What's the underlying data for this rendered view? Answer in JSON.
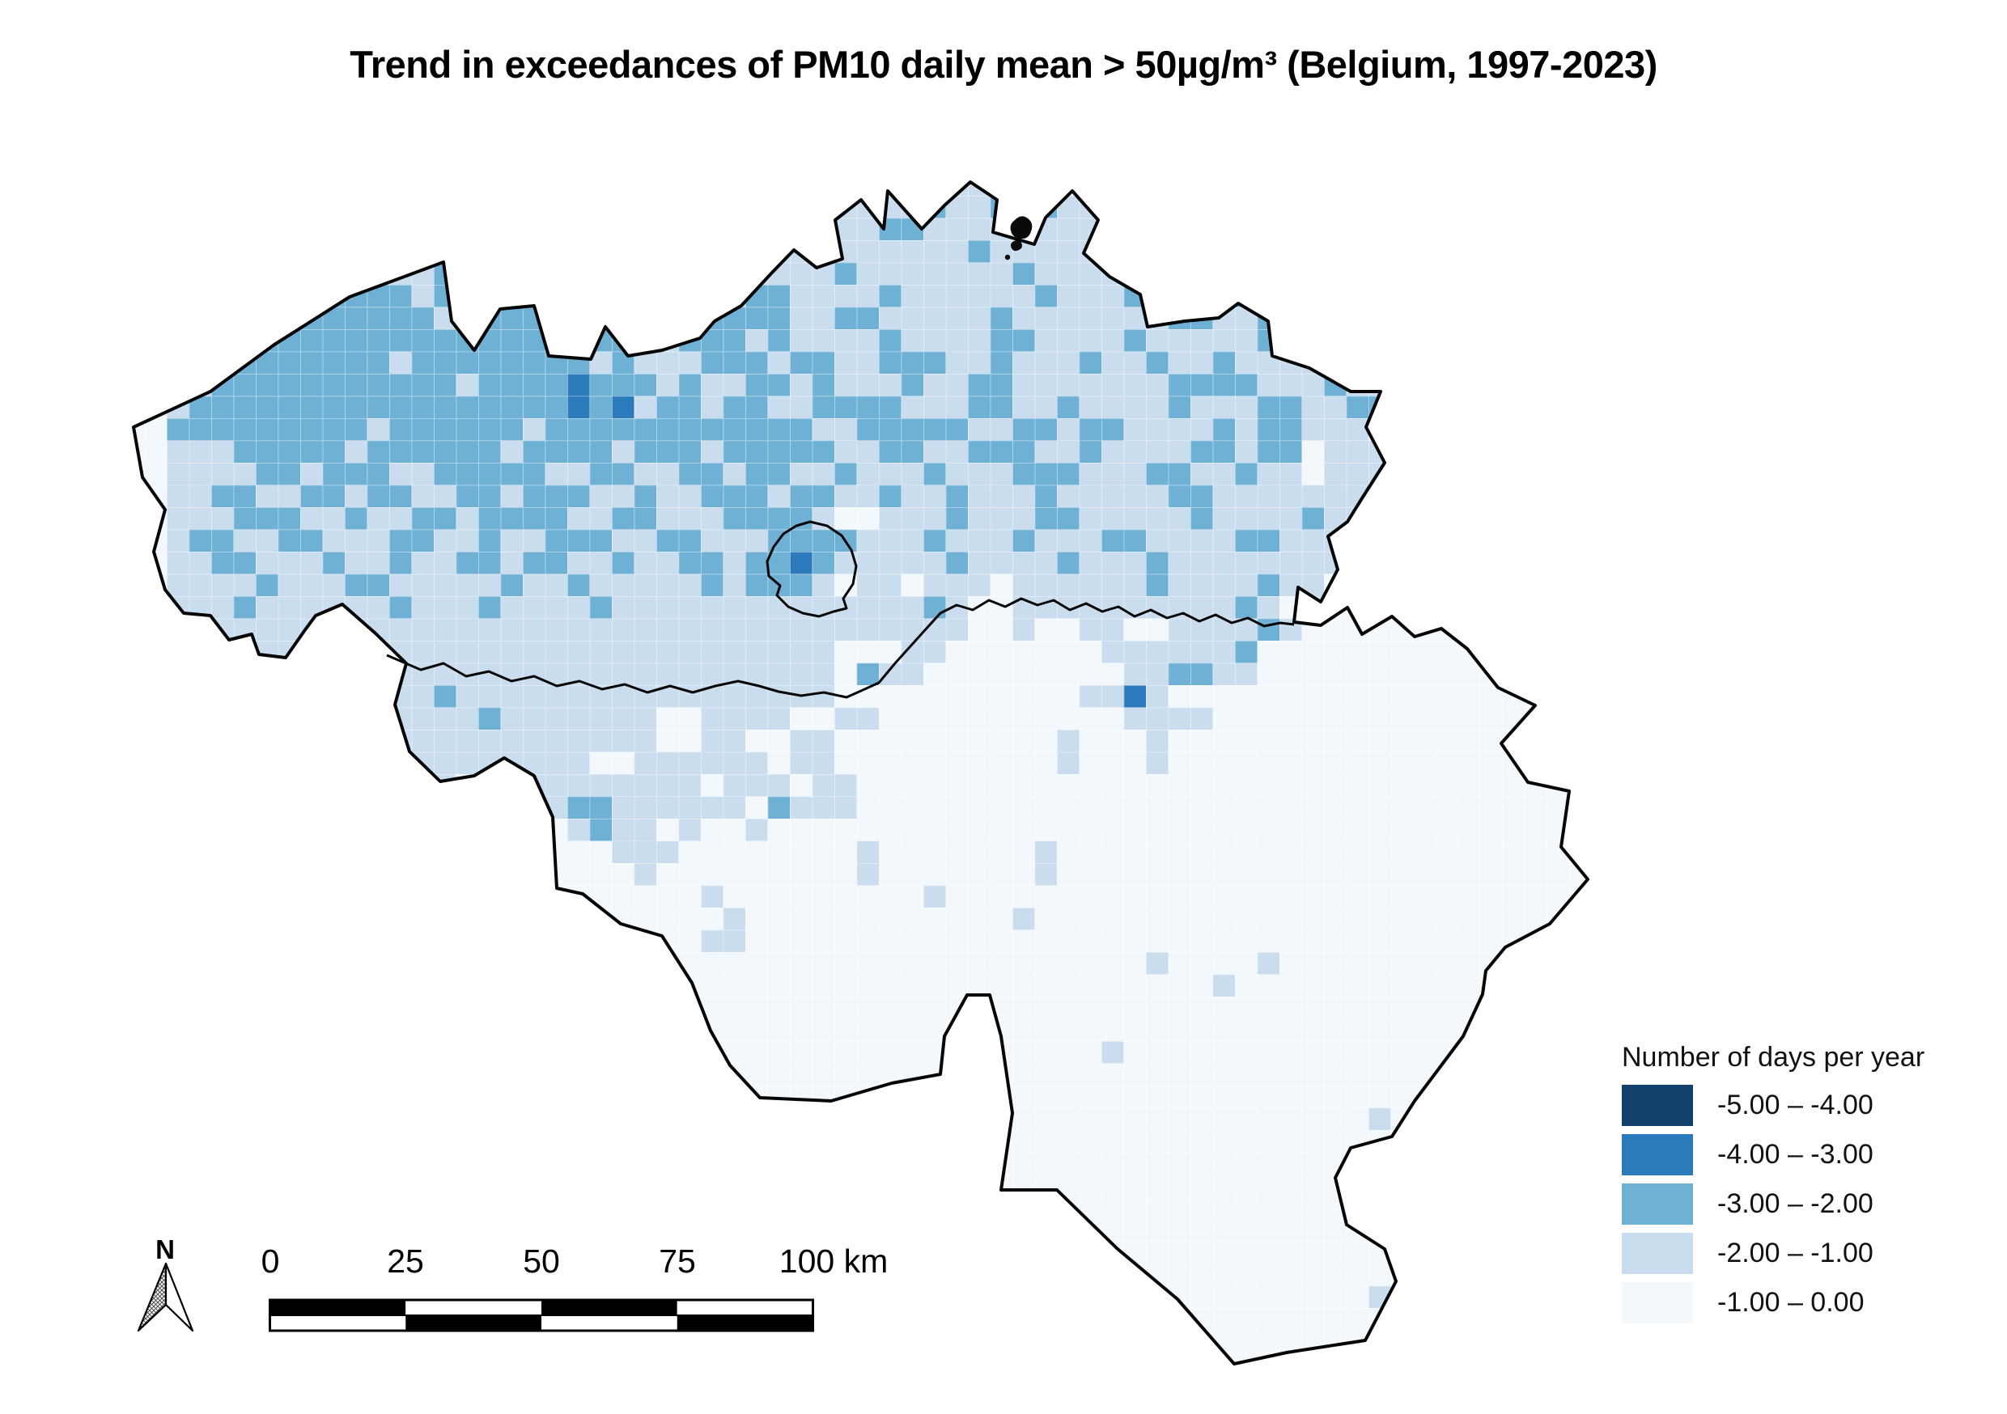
{
  "title": "Trend in exceedances of PM10 daily mean > 50µg/m³ (Belgium, 1997-2023)",
  "legend": {
    "title": "Number of days per year",
    "classes": [
      {
        "label": "-5.00 – -4.00",
        "color": "#14406e"
      },
      {
        "label": "-4.00 – -3.00",
        "color": "#2b7abc"
      },
      {
        "label": "-3.00 – -2.00",
        "color": "#6fb0d5"
      },
      {
        "label": "-2.00 – -1.00",
        "color": "#c9ddef"
      },
      {
        "label": "-1.00 – 0.00",
        "color": "#f3f8fc"
      }
    ]
  },
  "scalebar": {
    "labels": [
      "0",
      "25",
      "50",
      "75",
      "100 km"
    ]
  },
  "compass": {
    "label": "N"
  },
  "map": {
    "grid_note": "each char = one 27.5px raster cell; 2..5 map to legend classes from light to dark, '.' = -1..0 base class",
    "grid": [
      "....................................................................",
      "....................................................................",
      "....................................................................",
      "......................................2222...22....................",
      "..............................2232222232232322.....................",
      "..............222...........2232222233222222222322.................",
      "............33222222222223222222232222223222222222..................",
      "..........232222322222223222222222322222223222222222233222..........",
      ".........23333323333322322232233222232222223222322223223322.........",
      ".......2233333332333322332223333223322222322222223322332332.........",
      "...222333333333333333323322333232222322223322223222223322..........",
      "...222333333332333333332322233323322333223222322322322222222........",
      "...22233333333333233334333232233232223223322222223333222322........",
      "....233333333333333333434233233223333222332232222322233223322......",
      "....333333333233333323333333333332233333223323322223233222..........",
      "....222333332333333233332333233333223322333223222233233.222........",
      "....222233233322333332233223323322322232223332223322322.222........",
      "....223322332332233233322322333233223223222322222332222222..........",
      "....222333223223323333223322233332..2223222332222232222322..........",
      "....233223322233223223332233222333322232223222332222332222..........",
      "....223322232232233233223223323343222223222232223222222222..........",
      "....222232223322222322322222323332 22.222.22222232222322.222........",
      "....222322222232223222232222222222222232..222222222232 2...........",
      "....222222222222222222222222222222222222..2..22..222232.............",
      "....222222222222222222222222222222...22.......2222223..............",
      "....222222222222222222222222222222.322.........223322..............",
      "....222222222222322222222222222222...........2242..................",
      ".....222222222222232222222..2222..22...........2222................",
      ".....222222222222222222222..22..22..........2...2..................",
      "......22222222222222222..222222.22..........2...2..................",
      "........22..22222..222222222.222.22................................",
      "............222.22222233222222 3222................................",
      "..............22.222..2322.2..2....................................",
      "..................2.....222........2.......2.......................",
      ".........................2.........2.......2.......................",
      "............................2.........2............................",
      ".............................2............2........................",
      "............................22.....................................",
      "................................................2....2.............",
      "...................................................2...............",
      "....................................................................",
      "....................................................................",
      "..............................................2....................",
      "....................................................................",
      "....................................................................",
      "..........................................................2........",
      "....................................................................",
      "....................................................................",
      "....................................................................",
      "....................................................................",
      "....................................................................",
      "....................................................................",
      "....................................................................",
      "..........................................................2........",
      "....................................................................",
      "....................................................................",
      "...................................................................."
    ]
  }
}
